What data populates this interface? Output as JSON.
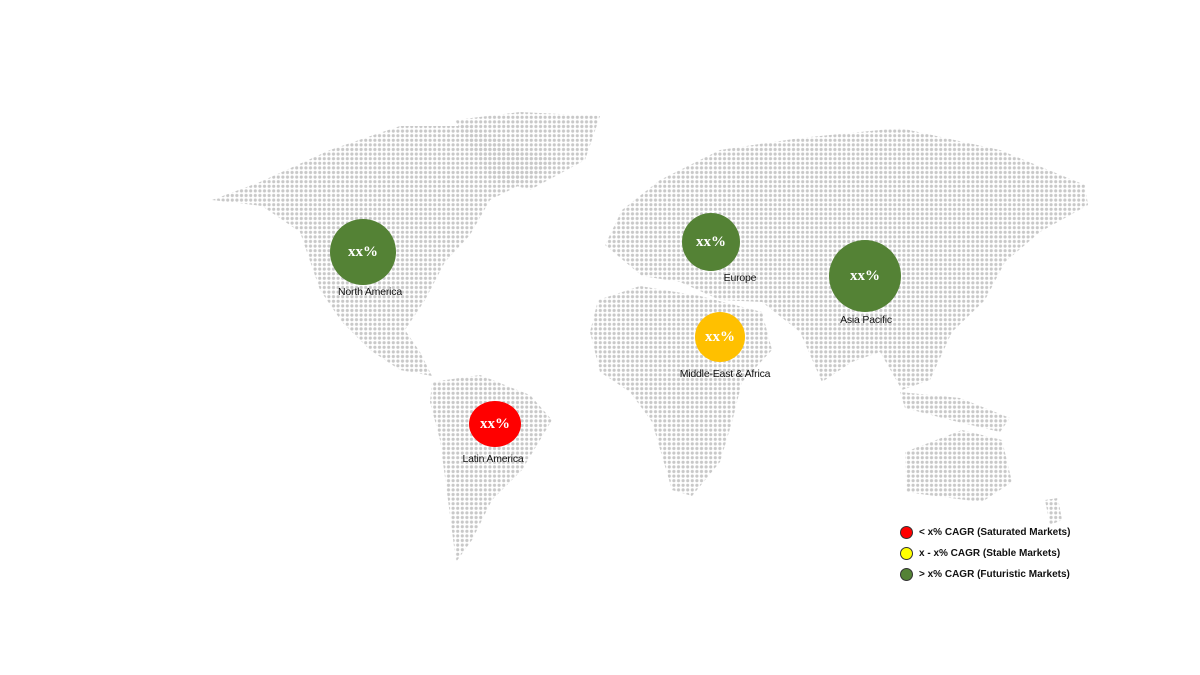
{
  "regions": [
    {
      "name": "North America",
      "value": "xx%",
      "color": "#548235",
      "category": "futuristic"
    },
    {
      "name": "Europe",
      "value": "xx%",
      "color": "#548235",
      "category": "futuristic"
    },
    {
      "name": "Asia Pacific",
      "value": "xx%",
      "color": "#548235",
      "category": "futuristic"
    },
    {
      "name": "Middle-East & Africa",
      "value": "xx%",
      "color": "#FFC000",
      "category": "stable"
    },
    {
      "name": "Latin America",
      "value": "xx%",
      "color": "#FF0000",
      "category": "saturated"
    }
  ],
  "legend": [
    {
      "label": "< x% CAGR (Saturated Markets)",
      "color": "#FF0000"
    },
    {
      "label": "x - x% CAGR (Stable Markets)",
      "color": "#FFFF00"
    },
    {
      "label": "> x% CAGR (Futuristic Markets)",
      "color": "#548235"
    }
  ],
  "map_dot_color": "#C8C8C8"
}
